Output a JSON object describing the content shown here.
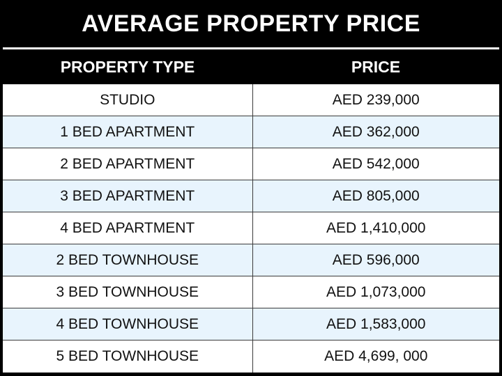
{
  "title": "AVERAGE PROPERTY PRICE",
  "columns": [
    "PROPERTY TYPE",
    "PRICE"
  ],
  "rows": [
    {
      "type": "STUDIO",
      "price": "AED 239,000"
    },
    {
      "type": "1 BED APARTMENT",
      "price": "AED 362,000"
    },
    {
      "type": "2 BED APARTMENT",
      "price": "AED 542,000"
    },
    {
      "type": "3 BED APARTMENT",
      "price": "AED 805,000"
    },
    {
      "type": "4 BED APARTMENT",
      "price": "AED 1,410,000"
    },
    {
      "type": "2 BED TOWNHOUSE",
      "price": "AED 596,000"
    },
    {
      "type": "3 BED TOWNHOUSE",
      "price": "AED 1,073,000"
    },
    {
      "type": "4 BED TOWNHOUSE",
      "price": "AED 1,583,000"
    },
    {
      "type": "5 BED TOWNHOUSE",
      "price": "AED 4,699, 000"
    }
  ],
  "colors": {
    "header_bg": "#000000",
    "header_text": "#ffffff",
    "row_plain": "#ffffff",
    "row_alt": "#e8f4fd",
    "grid": "#3a3a3a"
  }
}
